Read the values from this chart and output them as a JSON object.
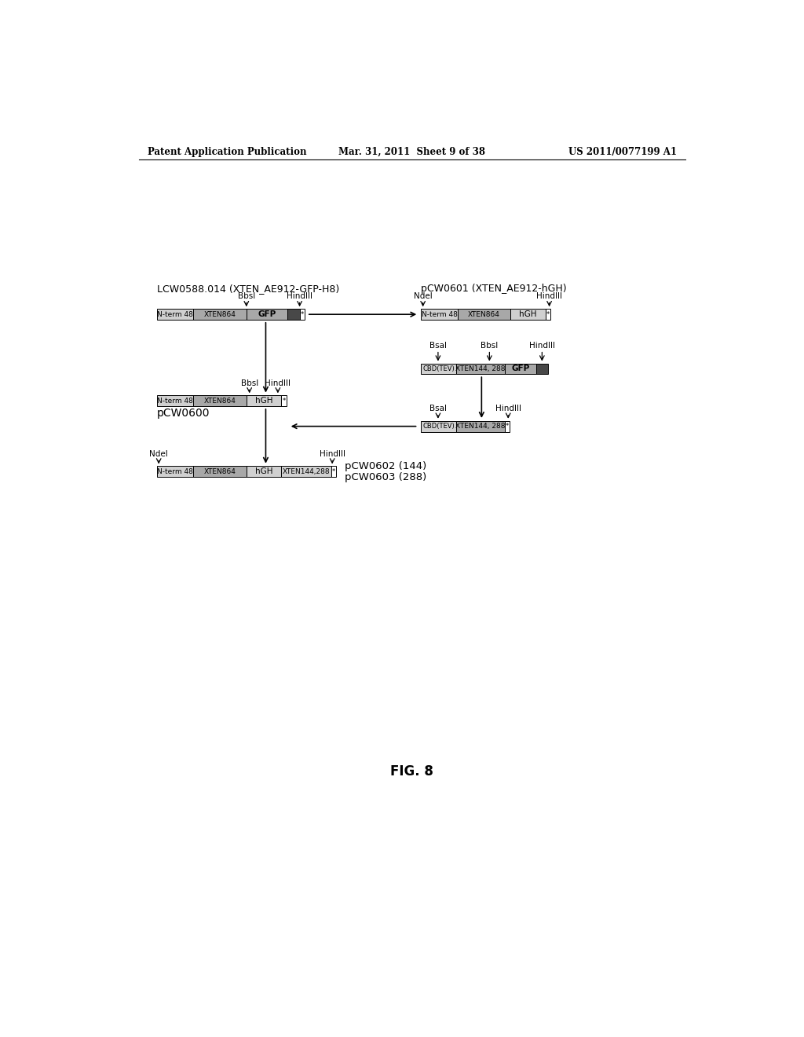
{
  "header_left": "Patent Application Publication",
  "header_center": "Mar. 31, 2011  Sheet 9 of 38",
  "header_right": "US 2011/0077199 A1",
  "fig_label": "FIG. 8",
  "title1": "LCW0588.014 (XTEN_AE912-GFP-H8)",
  "title2": "pCW0601 (XTEN_AE912-hGH)",
  "label_pcw0600": "pCW0600",
  "label_pcw0602": "pCW0602 (144)",
  "label_pcw0603": "pCW0603 (288)",
  "background_color": "#ffffff",
  "c_light_gray": "#d0d0d0",
  "c_medium_gray": "#a8a8a8",
  "c_dark_gray": "#484848",
  "c_white": "#ffffff",
  "c_black": "#000000"
}
